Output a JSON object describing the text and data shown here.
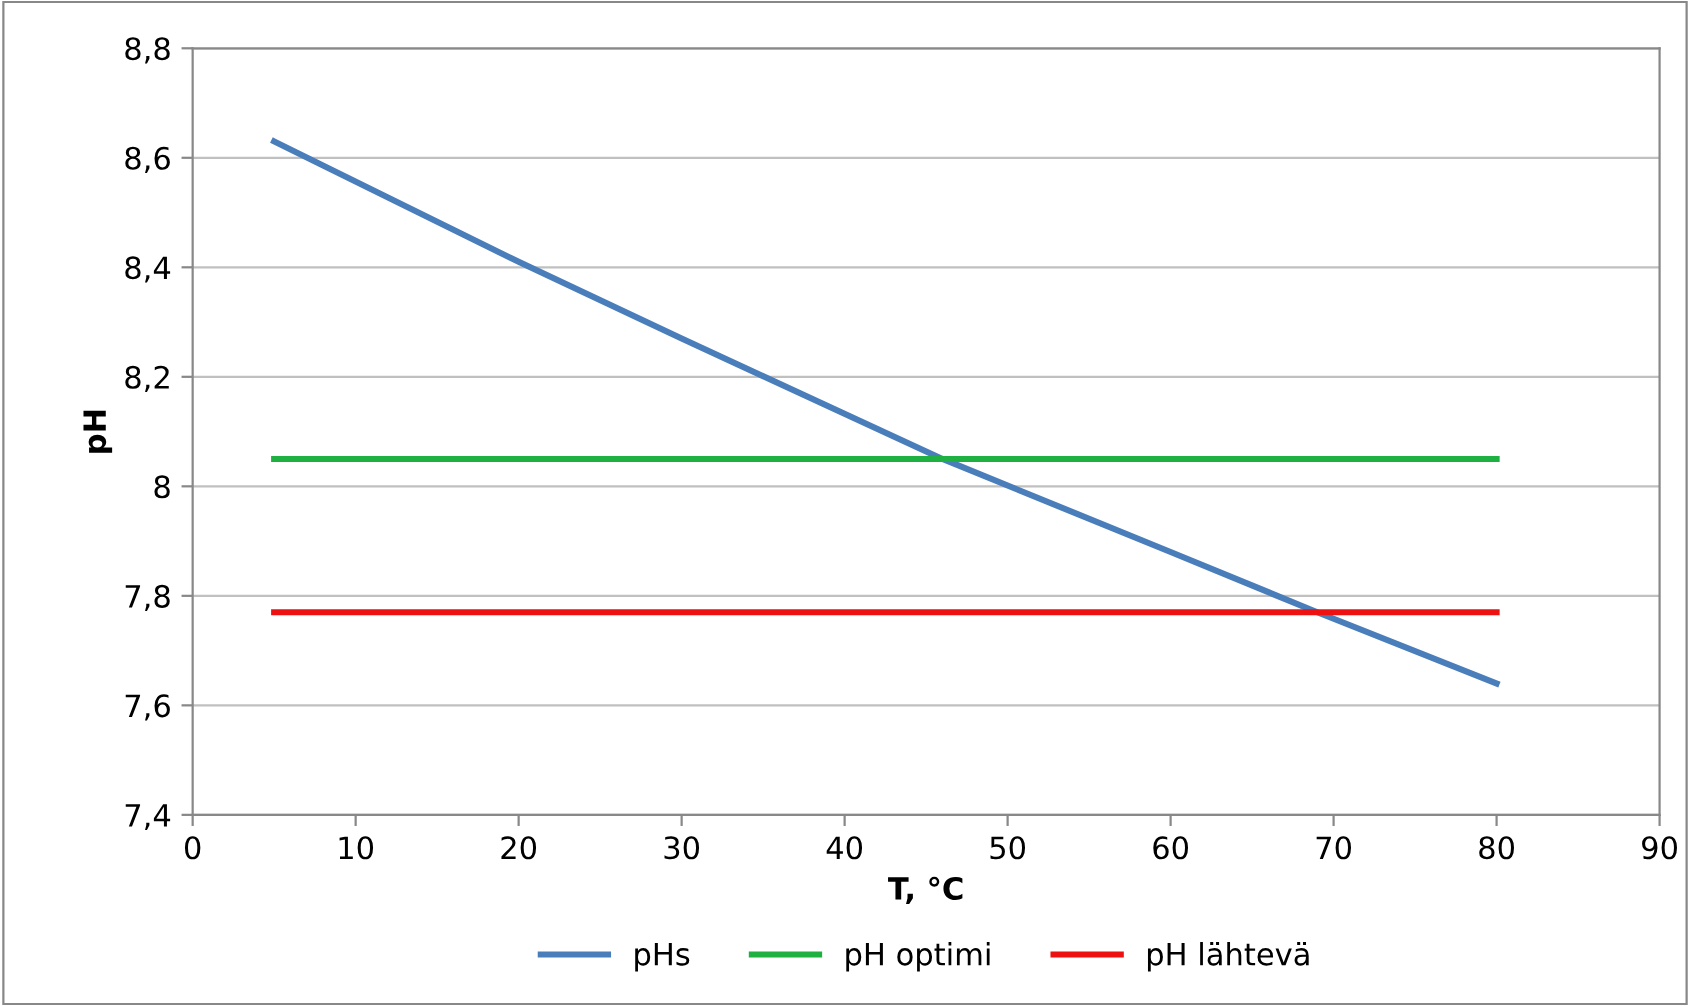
{
  "chart_data": {
    "type": "line",
    "xlabel": "T, °C",
    "ylabel": "pH",
    "xlim": [
      0,
      90
    ],
    "xticks": [
      0,
      10,
      20,
      30,
      40,
      50,
      60,
      70,
      80,
      90
    ],
    "ylim": [
      7.4,
      8.8
    ],
    "yticks": [
      {
        "value": 7.4,
        "label": "7,4"
      },
      {
        "value": 7.6,
        "label": "7,6"
      },
      {
        "value": 7.8,
        "label": "7,8"
      },
      {
        "value": 8,
        "label": "8"
      },
      {
        "value": 8.2,
        "label": "8,2"
      },
      {
        "value": 8.4,
        "label": "8,4"
      },
      {
        "value": 8.6,
        "label": "8,6"
      },
      {
        "value": 8.8,
        "label": "8,8"
      }
    ],
    "grid": "y",
    "legend": "bottom",
    "marker": "none",
    "line_style": "solid",
    "series": [
      {
        "name": "pHs",
        "color": "#4a7ebb",
        "x": [
          5,
          20,
          30,
          46,
          60,
          69,
          80
        ],
        "values": [
          8.63,
          8.41,
          8.27,
          8.05,
          7.88,
          7.77,
          7.64
        ]
      },
      {
        "name": "pH optimi",
        "color": "#1eb040",
        "x": [
          5,
          80
        ],
        "values": [
          8.05,
          8.05
        ]
      },
      {
        "name": "pH lähtevä",
        "color": "#ee1111",
        "x": [
          5,
          80
        ],
        "values": [
          7.77,
          7.77
        ]
      }
    ]
  }
}
